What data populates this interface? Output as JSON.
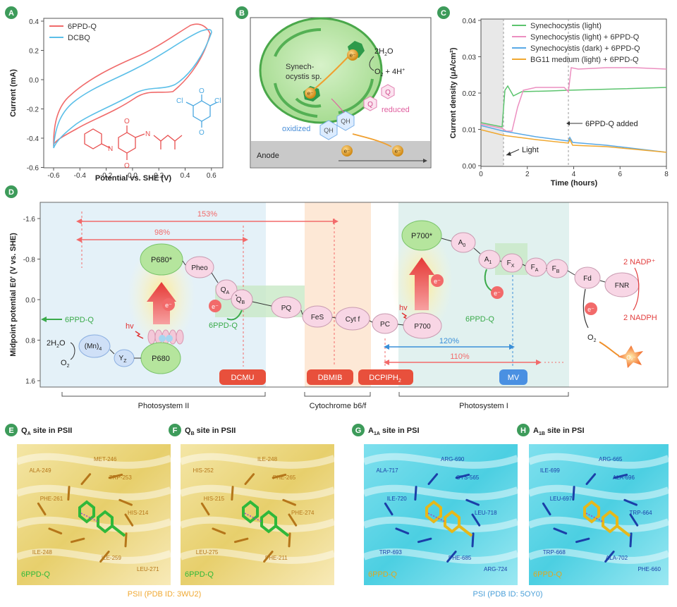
{
  "panels": {
    "A": "A",
    "B": "B",
    "C": "C",
    "D": "D",
    "E": "E",
    "F": "F",
    "G": "G",
    "H": "H"
  },
  "panelA": {
    "xlabel": "Potential vs. SHE (V)",
    "ylabel": "Current (mA)",
    "legend": [
      "6PPD-Q",
      "DCBQ"
    ],
    "colors": [
      "#f06a6a",
      "#5bbfe8"
    ],
    "xticks": [
      "-0.6",
      "-0.4",
      "-0.2",
      "0.0",
      "0.2",
      "0.4",
      "0.6"
    ],
    "yticks": [
      "0.4",
      "0.2",
      "0.0",
      "-0.2",
      "-0.4",
      "-0.6"
    ],
    "mol_labels": {
      "o": "O",
      "n": "N",
      "h": "H",
      "cl": "Cl"
    }
  },
  "panelB": {
    "cell_label": "Synech-\nocystis sp.",
    "cell_label_l1": "Synech-",
    "cell_label_l2": "ocystis sp.",
    "h2o": "2H",
    "h2o_sub": "2",
    "h2o_o": "O",
    "o2": "O",
    "o2_sub": "2",
    "o2_rest": " + 4H",
    "o2_sup": "+",
    "eminus": "e⁻",
    "q": "Q",
    "qh2": "QH",
    "reduced": "reduced",
    "oxidized": "oxidized",
    "anode": "Anode"
  },
  "panelC": {
    "xlabel": "Time (hours)",
    "ylabel": "Current density (μA/cm²)",
    "legend": [
      "Synechocystis (light)",
      "Synechocystis (light) + 6PPD-Q",
      "Synechocystis (dark) + 6PPD-Q",
      "BG11 medium (light) + 6PPD-Q"
    ],
    "colors": [
      "#5cc46e",
      "#ec8fc0",
      "#5aa9e6",
      "#f0a830"
    ],
    "xticks": [
      "0",
      "2",
      "4",
      "6",
      "8"
    ],
    "yticks": [
      "0.04",
      "0.03",
      "0.02",
      "0.01",
      "0.00"
    ],
    "annot_added": "6PPD-Q added",
    "annot_light": "Light"
  },
  "panelD": {
    "ylabel": "Midpoint potential E0' (V vs. SHE)",
    "yticks": [
      "-1.6",
      "-0.8",
      "0.0",
      "0.8",
      "1.6"
    ],
    "pct153": "153%",
    "pct98": "98%",
    "pct120": "120%",
    "pct110": "110%",
    "nodes": {
      "p680star": "P680*",
      "pheo": "Pheo",
      "qa": "Q",
      "qa_sub": "A",
      "qb": "Q",
      "qb_sub": "B",
      "pq": "PQ",
      "fes": "FeS",
      "cytf": "Cyt f",
      "pc": "PC",
      "p700": "P700",
      "p700star": "P700*",
      "a0": "A",
      "a0_sub": "0",
      "a1": "A",
      "a1_sub": "1",
      "fx": "F",
      "fx_sub": "X",
      "fa": "F",
      "fa_sub": "A",
      "fb": "F",
      "fb_sub": "B",
      "fd": "Fd",
      "fnr": "FNR",
      "p680": "P680",
      "mn": "(Mn)",
      "mn_sub": "4",
      "yz": "Y",
      "yz_sub": "Z"
    },
    "h2o": "2H",
    "h2o_sub": "2",
    "h2o_o": "O",
    "o2": "O",
    "o2_sub": "2",
    "hv": "hv",
    "eminus": "e⁻",
    "ppdq": "6PPD-Q",
    "nadp": "2 NADP⁺",
    "nadph": "2 NADPH",
    "o2minus": "O₂⁻",
    "inhibitors": [
      "DCMU",
      "DBMIB",
      "DCPIPH",
      "MV"
    ],
    "dcpiph_sub": "2",
    "regions": [
      "Photosystem II",
      "Cytochrome b6/f",
      "Photosystem I"
    ]
  },
  "panelE": {
    "title_a": "Q",
    "title_sub": "A",
    "title_b": " site in PSII",
    "residues": [
      "MET-246",
      "ALA-249",
      "TRP-253",
      "PHE-261",
      "HIS-214",
      "ILE-248",
      "ILE-259",
      "LEU-271"
    ],
    "ligand": "6PPD-Q"
  },
  "panelF": {
    "title_a": "Q",
    "title_sub": "B",
    "title_b": " site in PSII",
    "residues": [
      "ILE-248",
      "HIS-252",
      "PHE-265",
      "HIS-215",
      "PHE-274",
      "LEU-275",
      "PHE-211"
    ],
    "ligand": "6PPD-Q"
  },
  "panelG": {
    "title_a": "A",
    "title_sub": "1A",
    "title_b": " site in PSI",
    "residues": [
      "ARG-690",
      "ALA-717",
      "CYS-565",
      "ILE-720",
      "LEU-718",
      "TRP-693",
      "PHE-685",
      "ARG-724"
    ],
    "ligand": "6PPD-Q"
  },
  "panelH": {
    "title_a": "A",
    "title_sub": "1B",
    "title_b": " site in PSI",
    "residues": [
      "ARG-665",
      "ILE-699",
      "ALA-696",
      "LEU-697",
      "TRP-664",
      "TRP-668",
      "ALA-702",
      "PHE-660"
    ],
    "ligand": "6PPD-Q"
  },
  "footer": {
    "psii": "PSII (PDB ID: 3WU2)",
    "psi": "PSI (PDB ID: 5OY0)"
  }
}
